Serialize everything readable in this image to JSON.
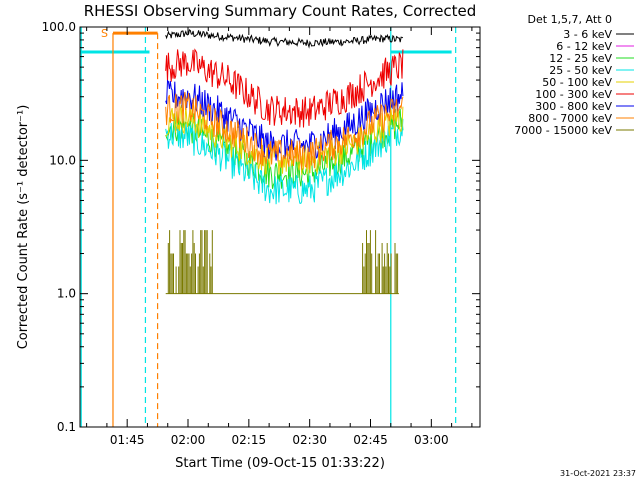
{
  "chart_data": {
    "type": "line",
    "title": "RHESSI Observing Summary Count Rates, Corrected",
    "xlabel": "Start Time (09-Oct-15 01:33:22)",
    "ylabel": "Corrected Count Rate (s⁻¹ detector⁻¹)",
    "yscale": "log",
    "ylim": [
      0.1,
      100
    ],
    "xlim": [
      "01:33:22",
      "03:12:00"
    ],
    "x_ticks": [
      "01:45",
      "02:00",
      "02:15",
      "02:30",
      "02:45",
      "03:00"
    ],
    "y_ticks": [
      "0.1",
      "1.0",
      "10.0",
      "100.0"
    ],
    "legend_title": "Det 1,5,7, Att 0",
    "legend_position": "right",
    "series": [
      {
        "name": "3 - 6 keV",
        "color": "#000000",
        "x": [
          "01:54:30",
          "02:00",
          "02:10",
          "02:20",
          "02:30",
          "02:40",
          "02:48",
          "02:53"
        ],
        "values": [
          85,
          90,
          84,
          78,
          76,
          78,
          82,
          80
        ]
      },
      {
        "name": "6 - 12 keV",
        "color": "#e01ce0",
        "x": [],
        "values": []
      },
      {
        "name": "12 - 25 keV",
        "color": "#22dd22",
        "x": [
          "01:54:30",
          "02:00",
          "02:10",
          "02:20",
          "02:30",
          "02:40",
          "02:48",
          "02:53"
        ],
        "values": [
          18,
          18,
          12,
          8,
          8,
          11,
          16,
          20
        ]
      },
      {
        "name": "25 - 50 keV",
        "color": "#00e5e5",
        "x": [
          "01:54:30",
          "02:00",
          "02:10",
          "02:20",
          "02:30",
          "02:40",
          "02:48",
          "02:53"
        ],
        "values": [
          16,
          15,
          10,
          6,
          6,
          9,
          14,
          18
        ]
      },
      {
        "name": "50 - 100 keV",
        "color": "#e5d200",
        "x": [
          "01:54:30",
          "02:00",
          "02:10",
          "02:20",
          "02:30",
          "02:40",
          "02:48",
          "02:53"
        ],
        "values": [
          20,
          21,
          14,
          10,
          10,
          13,
          18,
          21
        ]
      },
      {
        "name": "100 - 300 keV",
        "color": "#ee0000",
        "x": [
          "01:54:30",
          "02:00",
          "02:10",
          "02:20",
          "02:30",
          "02:40",
          "02:48",
          "02:53"
        ],
        "values": [
          50,
          55,
          40,
          24,
          23,
          31,
          44,
          52
        ]
      },
      {
        "name": "300 - 800 keV",
        "color": "#0000ee",
        "x": [
          "01:54:30",
          "02:00",
          "02:10",
          "02:20",
          "02:30",
          "02:40",
          "02:48",
          "02:53"
        ],
        "values": [
          30,
          31,
          21,
          13,
          13,
          18,
          27,
          31
        ]
      },
      {
        "name": "800 - 7000 keV",
        "color": "#ff8000",
        "x": [
          "01:54:30",
          "02:00",
          "02:10",
          "02:20",
          "02:30",
          "02:40",
          "02:48",
          "02:53"
        ],
        "values": [
          24,
          25,
          17,
          11,
          11,
          15,
          21,
          25
        ]
      },
      {
        "name": "7000 - 15000 keV",
        "color": "#7a7a00",
        "x": [
          "01:54:30",
          "02:00",
          "02:05",
          "02:08",
          "02:40",
          "02:45",
          "02:48",
          "02:51",
          "02:52"
        ],
        "values": [
          2,
          2,
          1.6,
          1,
          1,
          1.6,
          2.2,
          2.4,
          1
        ]
      }
    ],
    "markers": [
      {
        "label": "S",
        "color": "#ff8000",
        "start": "01:41:30",
        "end": "01:52:30",
        "level": 90
      }
    ],
    "flags": {
      "cyan_level": 65,
      "cyan_intervals": [
        [
          "01:33:22",
          "01:50:30"
        ],
        [
          "02:50",
          "03:05"
        ]
      ],
      "cyan_solid_lines": [
        "01:33:40",
        "02:50"
      ],
      "cyan_dashed_lines": [
        "01:49:30",
        "03:06"
      ],
      "orange_solid_lines": [
        "01:41:30"
      ],
      "orange_dashed_lines": [
        "01:52:30"
      ]
    }
  },
  "timestamp": "31-Oct-2021 23:37"
}
